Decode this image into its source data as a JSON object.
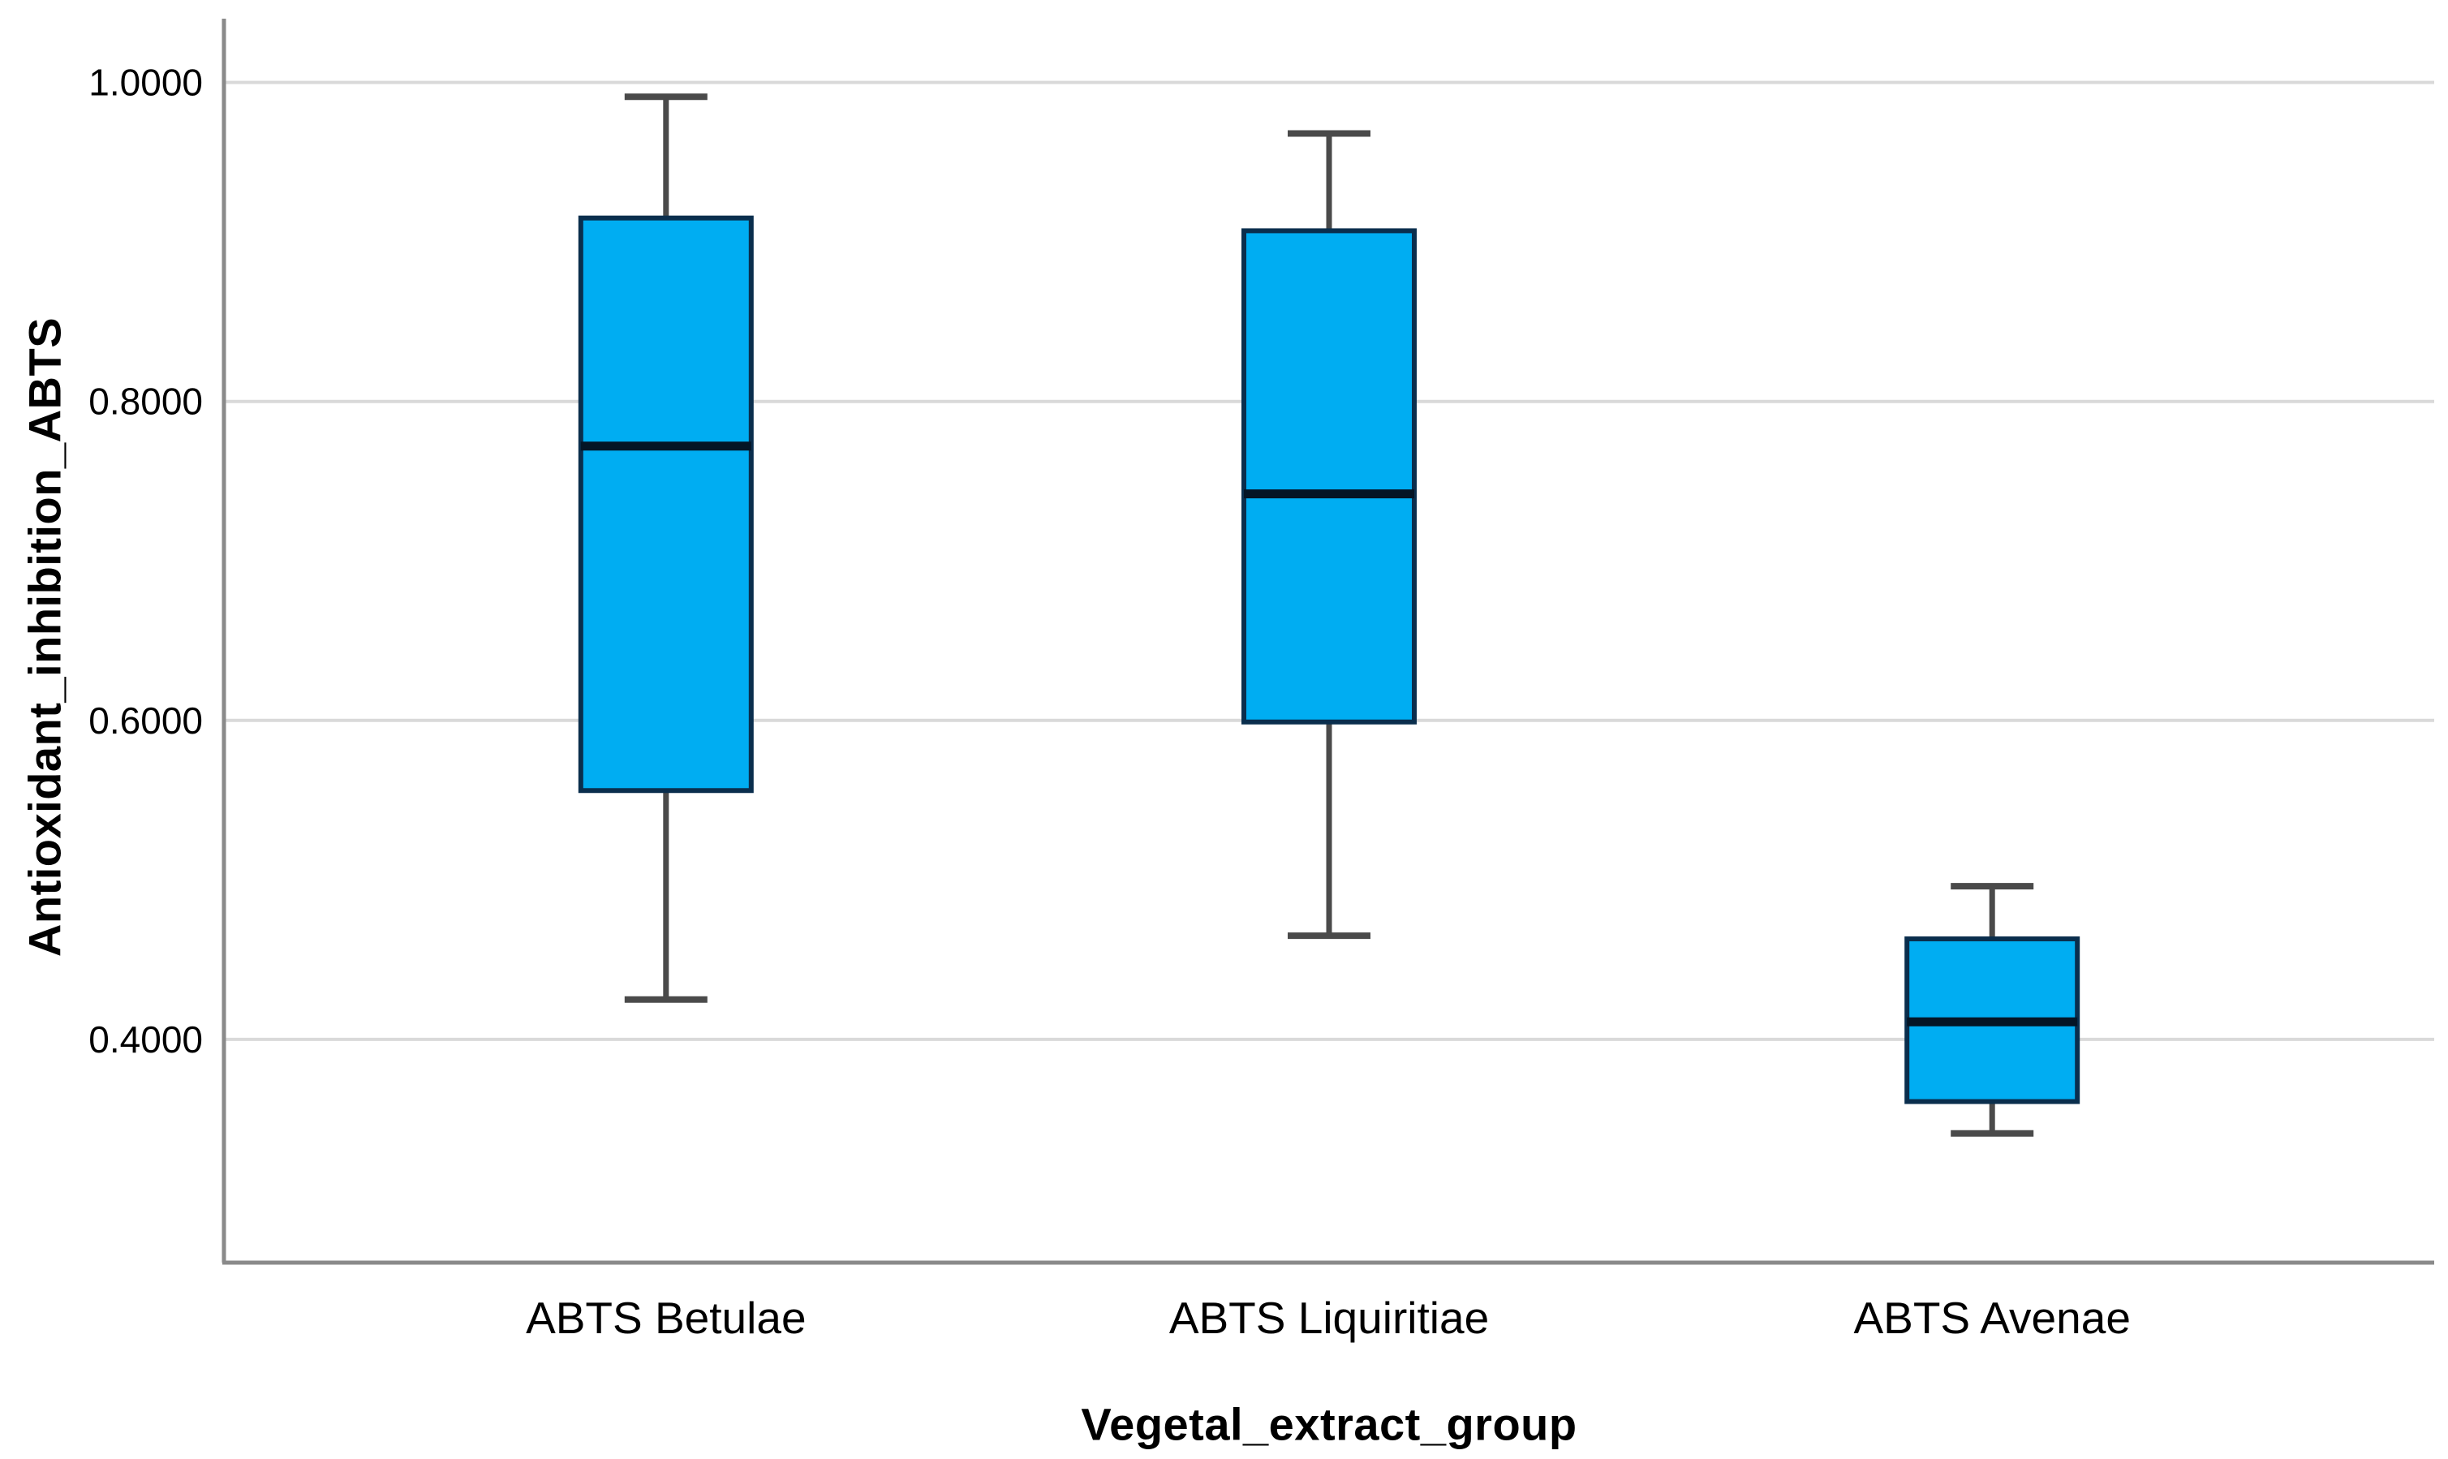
{
  "chart_data": {
    "type": "box",
    "title": "",
    "xlabel": "Vegetal_extract_group",
    "ylabel": "Antioxidant_inhibition_ABTS",
    "categories": [
      "ABTS Betulae",
      "ABTS Liquiritiae",
      "ABTS Avenae"
    ],
    "boxes": [
      {
        "category": "ABTS Betulae",
        "whisker_low": 0.425,
        "q1": 0.556,
        "median": 0.772,
        "q3": 0.915,
        "whisker_high": 0.991
      },
      {
        "category": "ABTS Liquiritiae",
        "whisker_low": 0.465,
        "q1": 0.599,
        "median": 0.742,
        "q3": 0.907,
        "whisker_high": 0.968
      },
      {
        "category": "ABTS Avenae",
        "whisker_low": 0.341,
        "q1": 0.361,
        "median": 0.411,
        "q3": 0.463,
        "whisker_high": 0.496
      }
    ],
    "yticks": {
      "labels": [
        "1.0000",
        "0.8000",
        "0.6000",
        "0.4000"
      ],
      "values": [
        1.0,
        0.8,
        0.6,
        0.4
      ]
    },
    "ylim": [
      0.26,
      1.04
    ],
    "grid": true,
    "legend": "none",
    "colors": {
      "box_fill": "#00ADF2",
      "box_border": "#0A2E4D",
      "median_line": "#041526",
      "whisker": "#4A4A4A",
      "gridline": "#D9D9D9",
      "axis_line": "#8A8A8A",
      "text": "#000000"
    }
  }
}
